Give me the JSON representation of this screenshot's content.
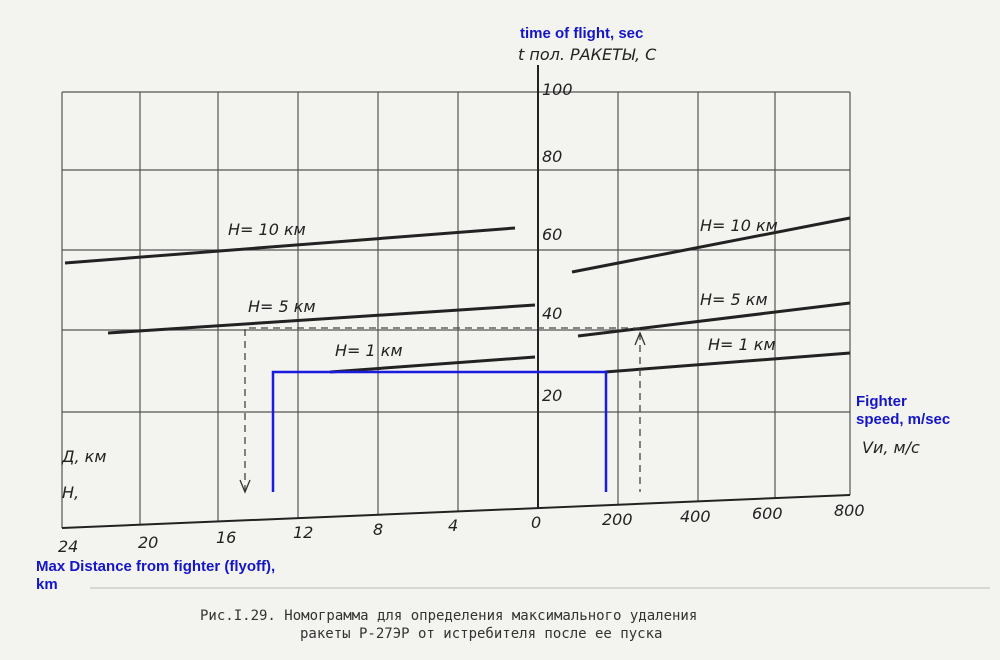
{
  "header": {
    "annotation": "time of flight, sec",
    "axis_label": "t пол. РАКЕТЫ, С"
  },
  "y_labels": [
    "100",
    "80",
    "60",
    "40",
    "20"
  ],
  "left_curves": [
    "H= 10 км",
    "H= 5 км",
    "H= 1 км"
  ],
  "right_curves": [
    "H= 10 км",
    "H= 5 км",
    "H= 1 км"
  ],
  "speed": {
    "annotation_1": "Fighter",
    "annotation_2": "speed, m/sec",
    "axis_label": "Vи, м/с"
  },
  "distance": {
    "axis_label": "Д, км",
    "axis_label_2": "Н,",
    "annotation_1": "Max Distance from fighter (flyoff),",
    "annotation_2": "km"
  },
  "x_labels_left": [
    "24",
    "20",
    "16",
    "12",
    "8",
    "4",
    "0"
  ],
  "x_labels_right": [
    "200",
    "400",
    "600",
    "800"
  ],
  "caption": {
    "line_1": "Рис.I.29. Номограмма для определения максимального удаления",
    "line_2": "ракеты Р-27ЭР от истребителя после ее пуска"
  }
}
